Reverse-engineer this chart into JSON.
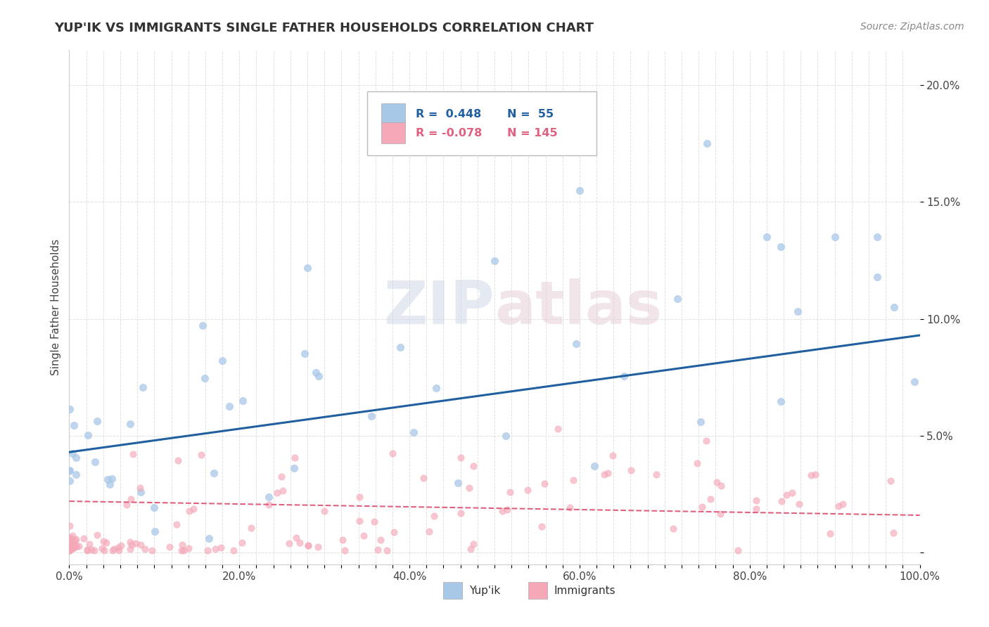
{
  "title": "YUP'IK VS IMMIGRANTS SINGLE FATHER HOUSEHOLDS CORRELATION CHART",
  "source": "Source: ZipAtlas.com",
  "ylabel": "Single Father Households",
  "xlim": [
    0,
    1.0
  ],
  "ylim": [
    -0.005,
    0.215
  ],
  "xtick_labels": [
    "0.0%",
    "",
    "",
    "",
    "",
    "",
    "",
    "",
    "",
    "",
    "20.0%",
    "",
    "",
    "",
    "",
    "",
    "",
    "",
    "",
    "",
    "40.0%",
    "",
    "",
    "",
    "",
    "",
    "",
    "",
    "",
    "",
    "60.0%",
    "",
    "",
    "",
    "",
    "",
    "",
    "",
    "",
    "",
    "80.0%",
    "",
    "",
    "",
    "",
    "",
    "",
    "",
    "",
    "",
    "100.0%"
  ],
  "xtick_vals": [
    0.0,
    0.02,
    0.04,
    0.06,
    0.08,
    0.1,
    0.12,
    0.14,
    0.16,
    0.18,
    0.2,
    0.22,
    0.24,
    0.26,
    0.28,
    0.3,
    0.32,
    0.34,
    0.36,
    0.38,
    0.4,
    0.42,
    0.44,
    0.46,
    0.48,
    0.5,
    0.52,
    0.54,
    0.56,
    0.58,
    0.6,
    0.62,
    0.64,
    0.66,
    0.68,
    0.7,
    0.72,
    0.74,
    0.76,
    0.78,
    0.8,
    0.82,
    0.84,
    0.86,
    0.88,
    0.9,
    0.92,
    0.94,
    0.96,
    0.98,
    1.0
  ],
  "ytick_labels": [
    "20.0%",
    "15.0%",
    "10.0%",
    "5.0%",
    ""
  ],
  "ytick_vals": [
    0.2,
    0.15,
    0.1,
    0.05,
    0.0
  ],
  "yupik_color": "#A8C8E8",
  "immigrants_color": "#F4A8B8",
  "yupik_line_color": "#2060A0",
  "immigrants_line_color": "#E06080",
  "background_color": "#FFFFFF",
  "grid_color": "#DDDDDD",
  "watermark_color": "#D0D8E8",
  "watermark_pink": "#E8D0D8"
}
